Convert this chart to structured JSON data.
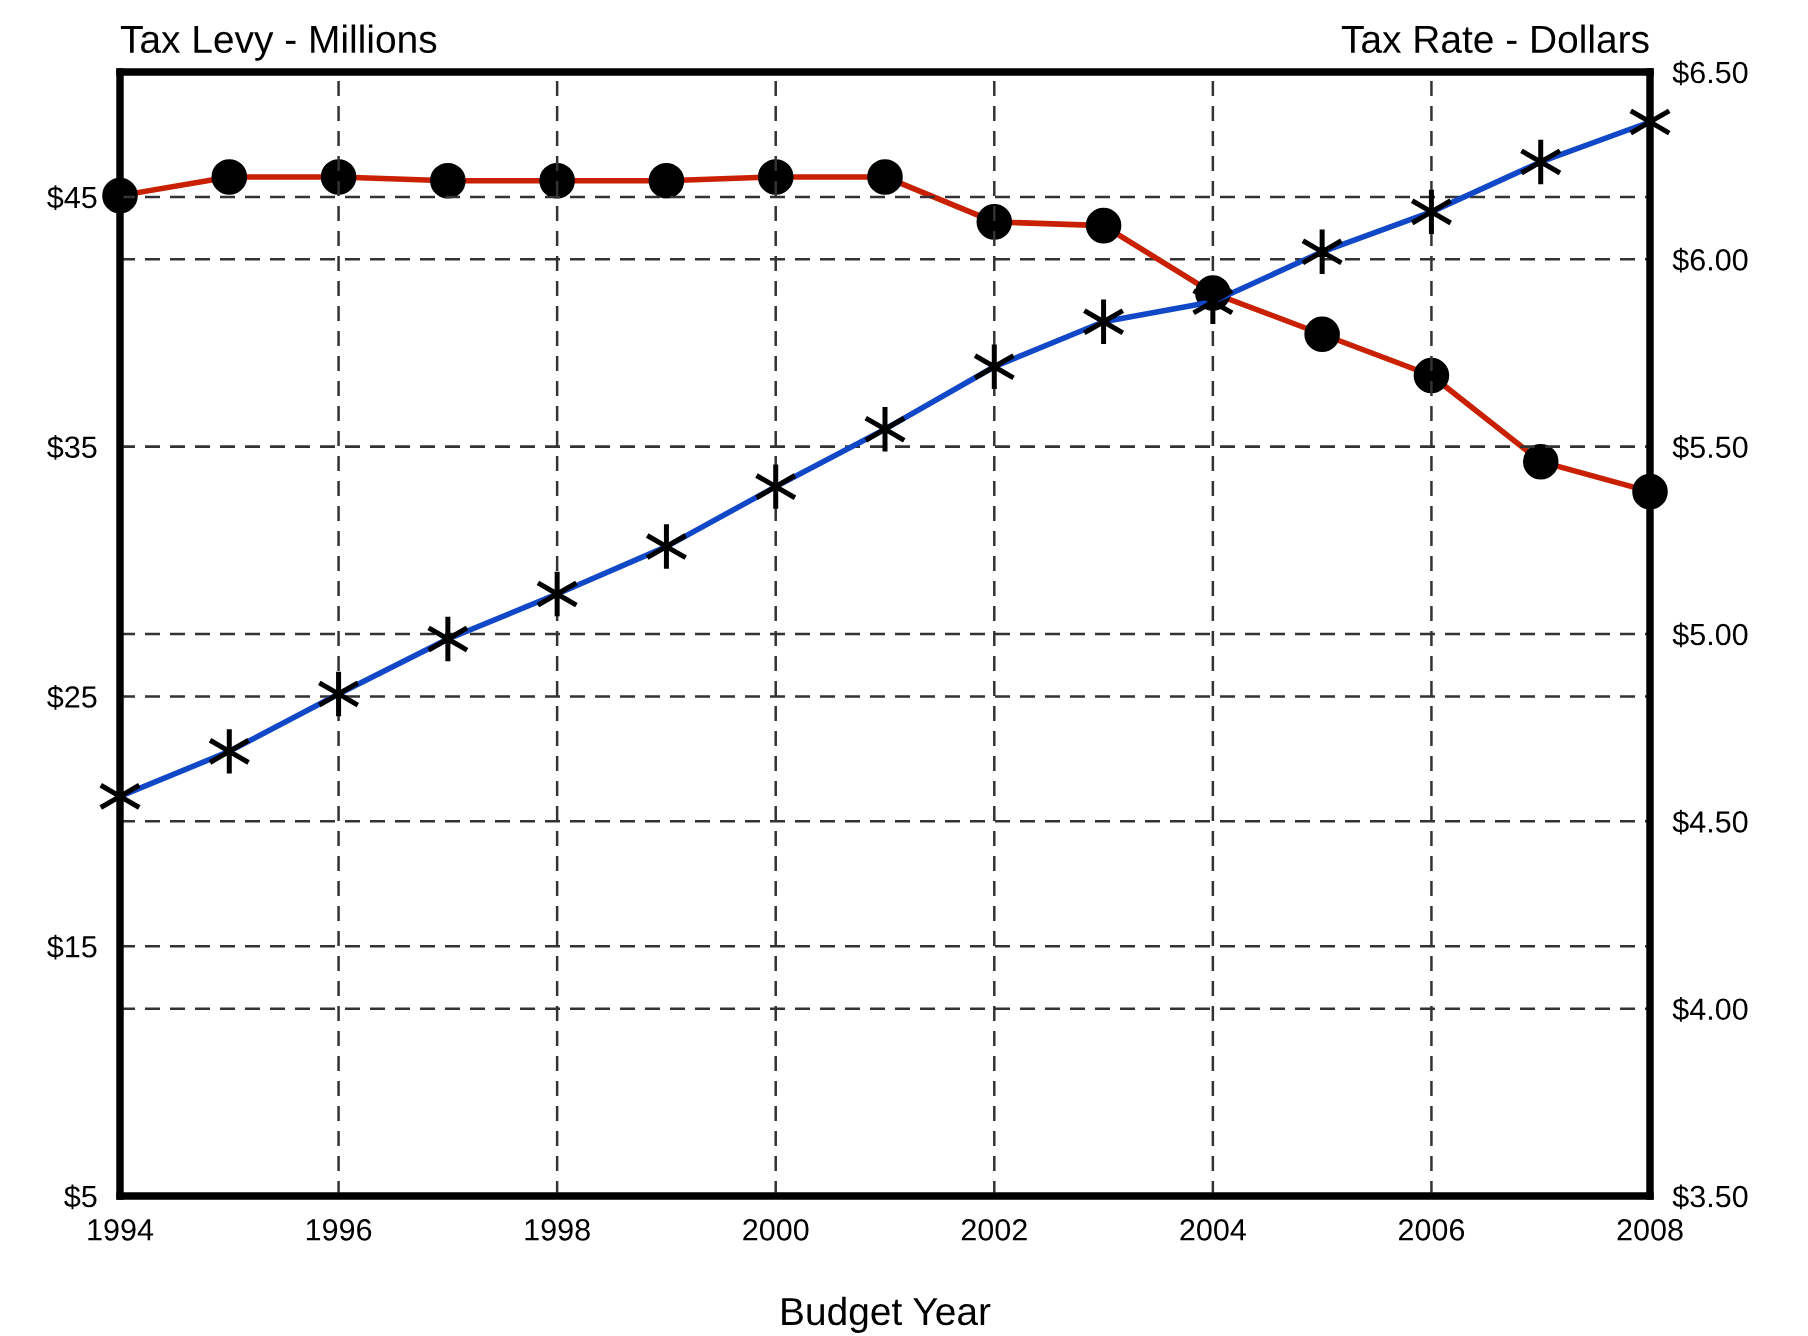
{
  "chart_data": {
    "type": "line",
    "xlabel": "Budget Year",
    "ylabel": "Tax Levy - Millions",
    "y2label": "Tax Rate - Dollars",
    "x": [
      1994,
      1995,
      1996,
      1997,
      1998,
      1999,
      2000,
      2001,
      2002,
      2003,
      2004,
      2005,
      2006,
      2007,
      2008
    ],
    "series": [
      {
        "color": "#1048c8",
        "marker": "cross",
        "values": [
          21.0,
          22.8,
          25.1,
          27.3,
          29.1,
          31.0,
          33.4,
          35.7,
          38.2,
          40.0,
          40.8,
          42.8,
          44.4,
          46.4,
          48.0
        ]
      },
      {
        "color": "#c82000",
        "marker": "circle",
        "axis": "y2",
        "values": [
          6.17,
          6.22,
          6.22,
          6.21,
          6.21,
          6.21,
          6.22,
          6.22,
          6.1,
          6.09,
          5.91,
          5.8,
          5.69,
          5.46,
          5.38
        ]
      }
    ],
    "xlim": [
      1994,
      2008
    ],
    "xticks": [
      1994,
      1996,
      1998,
      2000,
      2002,
      2004,
      2006,
      2008
    ],
    "ylim": [
      5,
      50
    ],
    "yticks": [
      {
        "value": 5,
        "label": "$5"
      },
      {
        "value": 15,
        "label": "$15"
      },
      {
        "value": 25,
        "label": "$25"
      },
      {
        "value": 35,
        "label": "$35"
      },
      {
        "value": 45,
        "label": "$45"
      }
    ],
    "y2lim": [
      3.5,
      6.5
    ],
    "y2ticks": [
      {
        "value": 3.5,
        "label": "$3.50"
      },
      {
        "value": 4.0,
        "label": "$4.00"
      },
      {
        "value": 4.5,
        "label": "$4.50"
      },
      {
        "value": 5.0,
        "label": "$5.00"
      },
      {
        "value": 5.5,
        "label": "$5.50"
      },
      {
        "value": 6.0,
        "label": "$6.00"
      },
      {
        "value": 6.5,
        "label": "$6.50"
      }
    ],
    "grid": true,
    "line_style": "solid"
  }
}
